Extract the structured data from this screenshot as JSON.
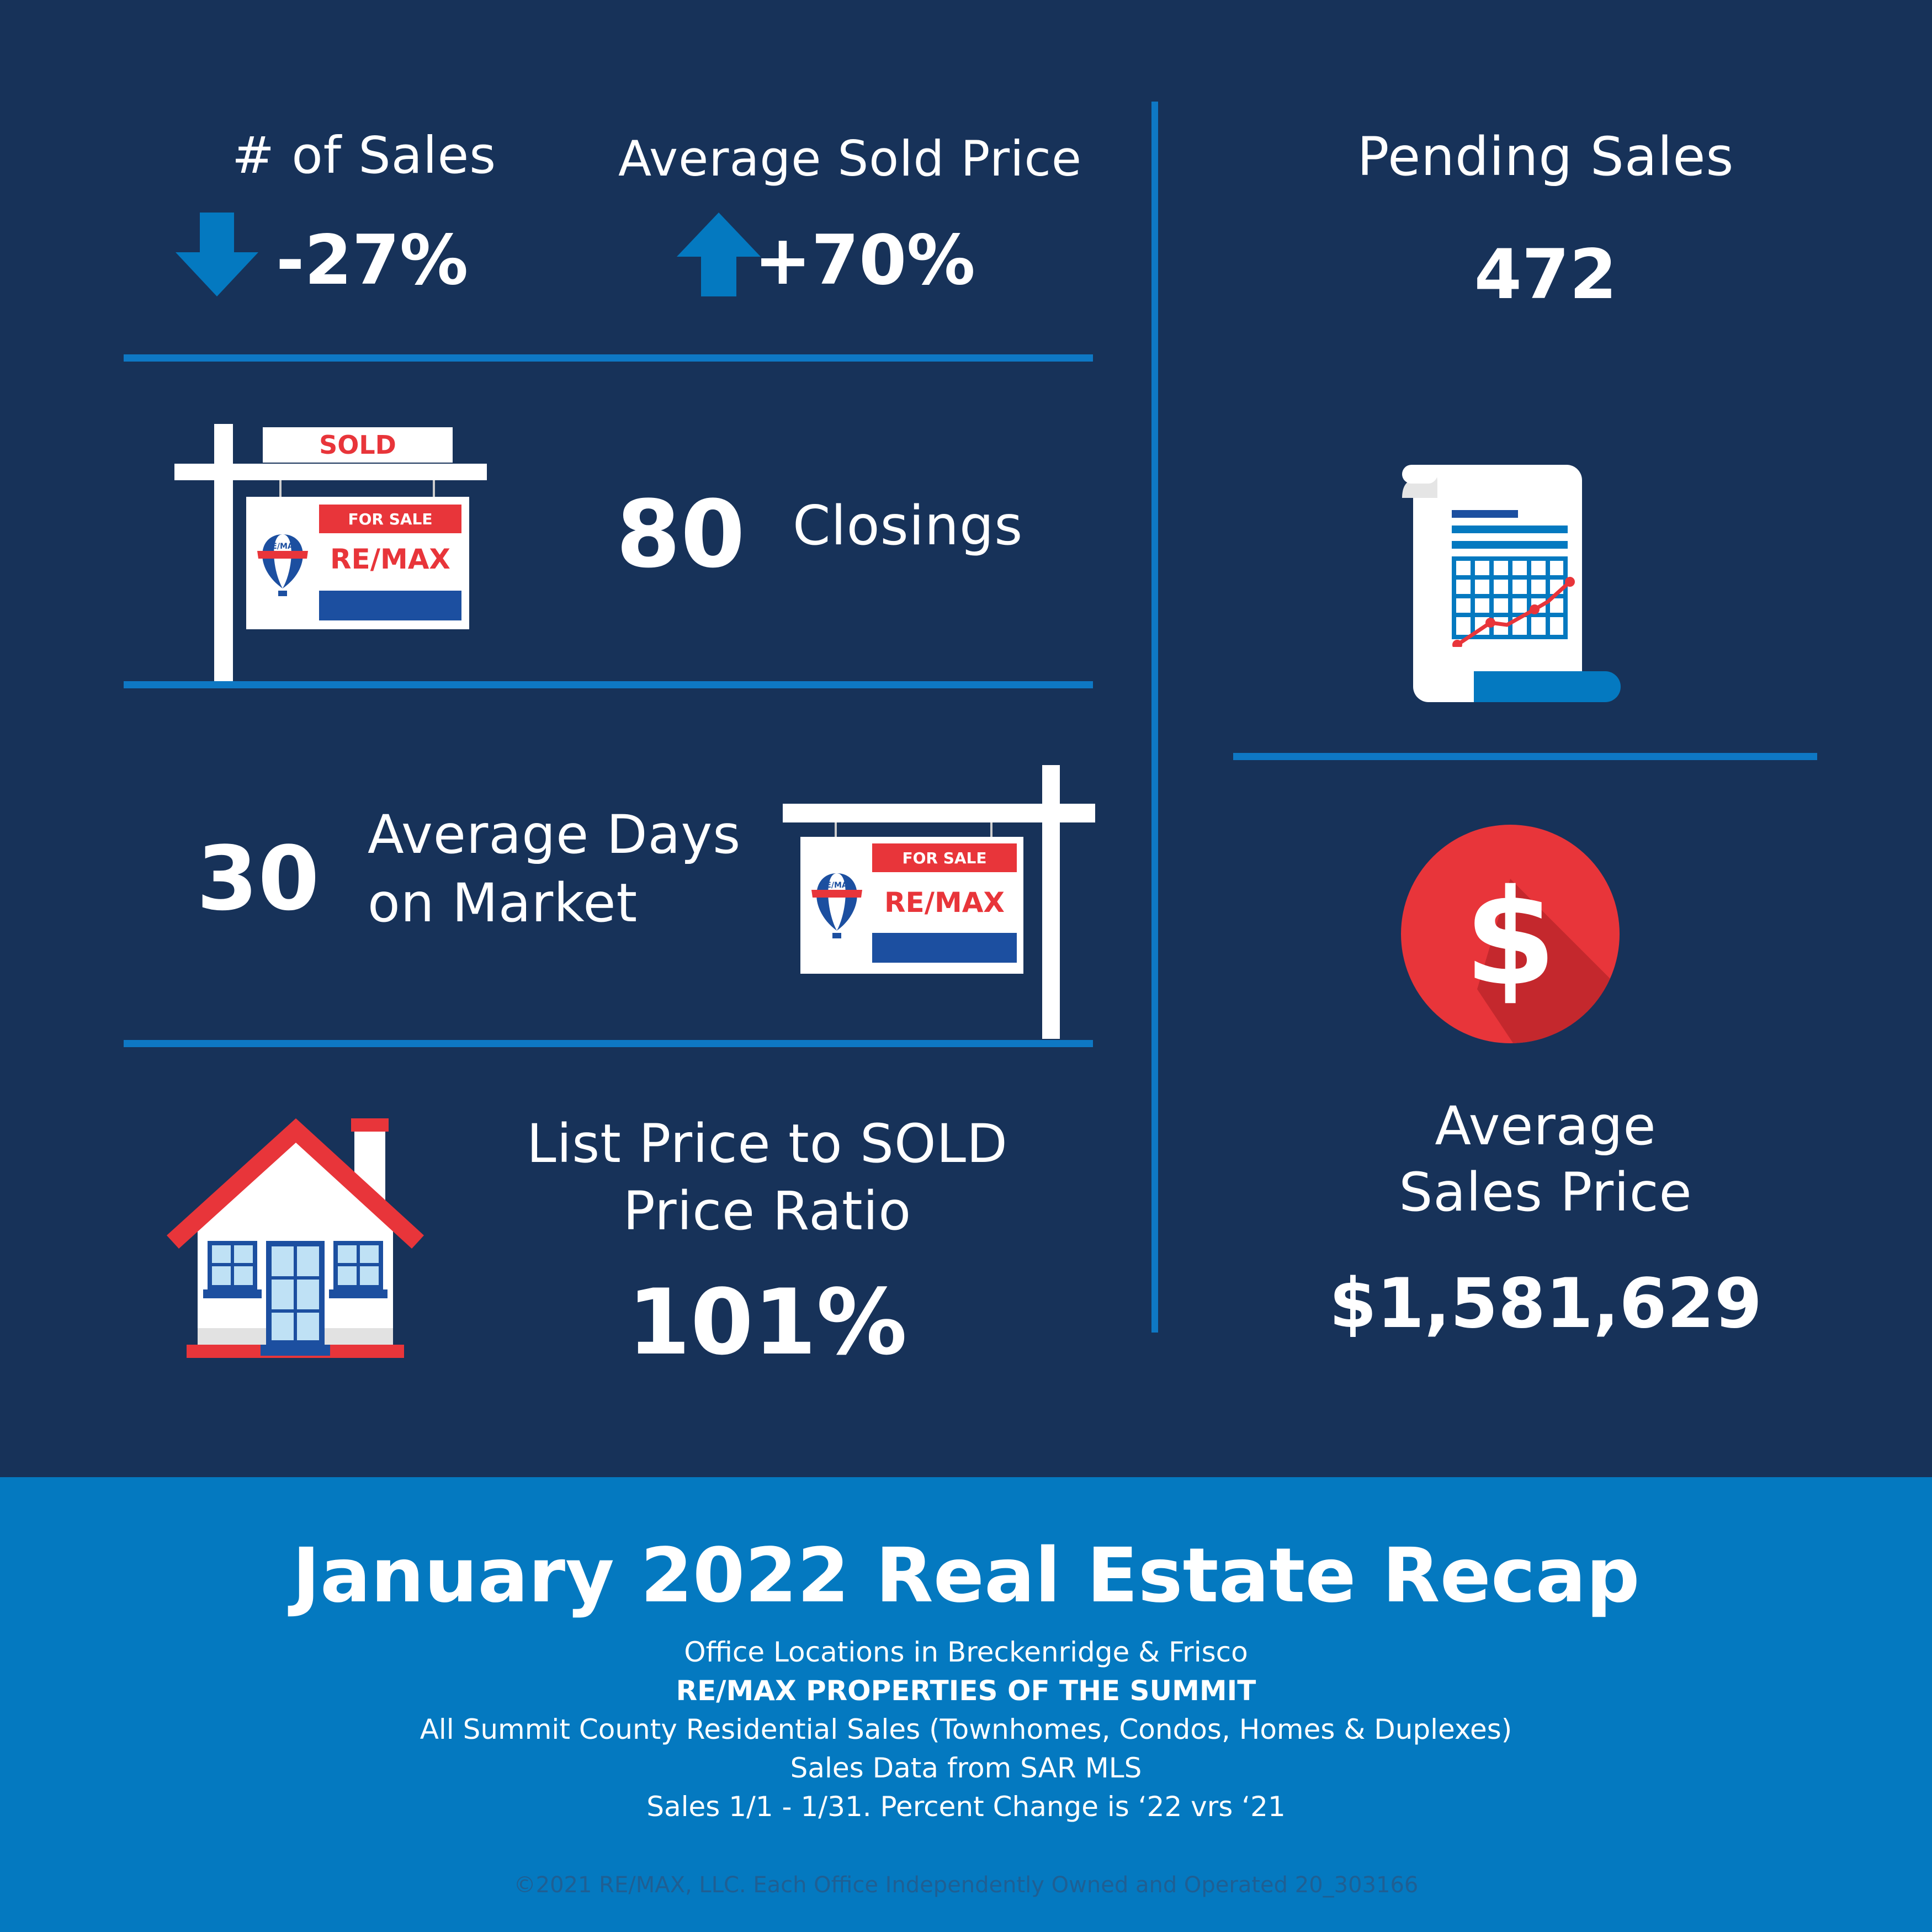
{
  "sales": {
    "label": "# of Sales",
    "change": "-27%",
    "arrow": "down-arrow-icon"
  },
  "sold_price": {
    "label": "Average Sold Price",
    "change": "+70%",
    "arrow": "up-arrow-icon"
  },
  "sold_sign": {
    "sold_text": "SOLD",
    "for_sale_text": "FOR SALE",
    "brand_text": "RE/MAX",
    "balloon_text": "RE/MAX"
  },
  "closings": {
    "value": "80",
    "label": "Closings"
  },
  "days_on_market": {
    "value": "30",
    "label_line1": "Average Days",
    "label_line2": "on Market"
  },
  "for_sale_sign": {
    "for_sale_text": "FOR SALE",
    "brand_text": "RE/MAX",
    "balloon_text": "RE/MAX"
  },
  "price_ratio": {
    "label_line1": "List Price to SOLD",
    "label_line2": "Price Ratio",
    "value": "101%"
  },
  "pending": {
    "label": "Pending Sales",
    "value": "472",
    "icon": "report-chart-icon"
  },
  "avg_sales_price": {
    "label_line1": "Average",
    "label_line2": "Sales Price",
    "value": "$1,581,629",
    "icon": "dollar-coin-icon"
  },
  "colors": {
    "navy": "#173259",
    "blue": "#0479c0",
    "red": "#e8353a",
    "white": "#ffffff"
  },
  "footer": {
    "title": "January 2022 Real Estate Recap",
    "line1": "Office Locations in Breckenridge & Frisco",
    "line2": "RE/MAX PROPERTIES OF THE SUMMIT",
    "line3": "All Summit County Residential Sales (Townhomes, Condos, Homes & Duplexes)",
    "line4": "Sales Data from SAR MLS",
    "line5": "Sales 1/1 - 1/31. Percent Change is ‘22 vrs ‘21",
    "copyright": "©2021 RE/MAX, LLC. Each Office Independently Owned and Operated 20_303166"
  }
}
